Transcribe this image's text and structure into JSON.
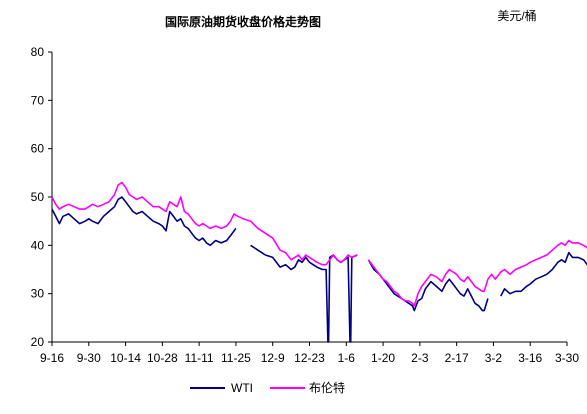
{
  "chart_data": {
    "type": "line",
    "title": "国际原油期货收盘价格走势图",
    "unit_label": "美元/桶",
    "ylim": [
      20,
      80
    ],
    "y_ticks": [
      20,
      30,
      40,
      50,
      60,
      70,
      80
    ],
    "x_ticks": [
      "9-16",
      "9-30",
      "10-14",
      "10-28",
      "11-11",
      "11-25",
      "12-9",
      "12-23",
      "1-6",
      "1-20",
      "2-3",
      "2-17",
      "3-2",
      "3-16",
      "3-30"
    ],
    "grid": false,
    "legend_position": "bottom",
    "series": [
      {
        "name": "WTI",
        "color": "#000080",
        "values": [
          [
            0,
            47.5
          ],
          [
            0.1,
            46.0
          ],
          [
            0.2,
            44.5
          ],
          [
            0.3,
            46.0
          ],
          [
            0.45,
            46.5
          ],
          [
            0.6,
            45.5
          ],
          [
            0.75,
            44.5
          ],
          [
            0.9,
            45.0
          ],
          [
            1.0,
            45.5
          ],
          [
            1.1,
            45.0
          ],
          [
            1.25,
            44.5
          ],
          [
            1.4,
            46.0
          ],
          [
            1.55,
            47.0
          ],
          [
            1.7,
            48.0
          ],
          [
            1.8,
            49.5
          ],
          [
            1.9,
            50.0
          ],
          [
            2.0,
            49.0
          ],
          [
            2.1,
            48.0
          ],
          [
            2.2,
            47.0
          ],
          [
            2.3,
            46.5
          ],
          [
            2.45,
            47.0
          ],
          [
            2.6,
            46.0
          ],
          [
            2.75,
            45.0
          ],
          [
            2.9,
            44.5
          ],
          [
            3.0,
            44.0
          ],
          [
            3.1,
            43.0
          ],
          [
            3.2,
            47.0
          ],
          [
            3.3,
            46.0
          ],
          [
            3.4,
            45.0
          ],
          [
            3.5,
            45.5
          ],
          [
            3.6,
            44.0
          ],
          [
            3.7,
            43.5
          ],
          [
            3.8,
            42.5
          ],
          [
            3.9,
            41.5
          ],
          [
            4.0,
            41.0
          ],
          [
            4.1,
            41.5
          ],
          [
            4.2,
            40.5
          ],
          [
            4.3,
            40.0
          ],
          [
            4.45,
            41.0
          ],
          [
            4.6,
            40.5
          ],
          [
            4.75,
            41.0
          ],
          [
            4.85,
            42.0
          ],
          [
            4.95,
            43.0
          ],
          [
            5.0,
            43.5
          ],
          null,
          [
            5.4,
            40.0
          ],
          [
            5.6,
            39.0
          ],
          [
            5.8,
            38.0
          ],
          [
            6.0,
            37.5
          ],
          [
            6.2,
            35.5
          ],
          [
            6.35,
            36.0
          ],
          [
            6.5,
            35.0
          ],
          [
            6.6,
            35.5
          ],
          [
            6.7,
            37.0
          ],
          [
            6.8,
            36.5
          ],
          [
            6.9,
            37.5
          ],
          [
            7.0,
            36.5
          ],
          [
            7.1,
            36.0
          ],
          [
            7.2,
            35.5
          ],
          [
            7.35,
            35.0
          ],
          [
            7.45,
            35.0
          ],
          [
            7.5,
            20.0
          ],
          [
            7.52,
            20.0
          ],
          [
            7.55,
            37.5
          ],
          [
            7.65,
            38.0
          ],
          [
            7.75,
            37.0
          ],
          [
            7.85,
            36.5
          ],
          [
            7.95,
            37.0
          ],
          [
            8.05,
            37.5
          ],
          [
            8.1,
            20.0
          ],
          [
            8.12,
            20.0
          ],
          [
            8.15,
            37.5
          ],
          [
            8.3,
            38.0
          ],
          null,
          [
            8.6,
            37.0
          ],
          [
            8.75,
            35.0
          ],
          [
            8.9,
            34.0
          ],
          [
            9.0,
            33.0
          ],
          [
            9.1,
            32.0
          ],
          [
            9.2,
            31.0
          ],
          [
            9.3,
            30.0
          ],
          [
            9.4,
            29.5
          ],
          [
            9.5,
            29.0
          ],
          [
            9.6,
            28.5
          ],
          [
            9.7,
            28.0
          ],
          [
            9.8,
            27.5
          ],
          [
            9.85,
            26.5
          ],
          [
            9.95,
            28.5
          ],
          [
            10.05,
            29.0
          ],
          [
            10.15,
            31.0
          ],
          [
            10.3,
            32.5
          ],
          [
            10.45,
            31.5
          ],
          [
            10.6,
            30.5
          ],
          [
            10.7,
            32.0
          ],
          [
            10.8,
            33.0
          ],
          [
            10.9,
            32.0
          ],
          [
            11.0,
            31.0
          ],
          [
            11.1,
            30.0
          ],
          [
            11.2,
            29.5
          ],
          [
            11.3,
            31.0
          ],
          [
            11.4,
            29.5
          ],
          [
            11.5,
            28.0
          ],
          [
            11.6,
            27.5
          ],
          [
            11.7,
            26.5
          ],
          [
            11.75,
            26.5
          ],
          [
            11.85,
            29.0
          ],
          null,
          [
            12.2,
            29.5
          ],
          [
            12.3,
            31.0
          ],
          [
            12.45,
            30.0
          ],
          [
            12.6,
            30.5
          ],
          [
            12.75,
            30.5
          ],
          [
            12.9,
            31.5
          ],
          [
            13.0,
            32.0
          ],
          [
            13.15,
            33.0
          ],
          [
            13.3,
            33.5
          ],
          [
            13.45,
            34.0
          ],
          [
            13.6,
            35.0
          ],
          [
            13.75,
            36.5
          ],
          [
            13.85,
            37.0
          ],
          [
            13.95,
            36.5
          ],
          [
            14.05,
            38.5
          ],
          [
            14.15,
            37.5
          ],
          [
            14.3,
            37.5
          ],
          [
            14.45,
            37.0
          ],
          [
            14.55,
            36.0
          ],
          [
            14.65,
            38.5
          ],
          [
            14.8,
            40.0
          ],
          [
            14.9,
            39.5
          ],
          [
            15.0,
            40.0
          ],
          [
            15.1,
            41.5
          ],
          [
            15.2,
            40.0
          ],
          [
            15.25,
            39.5
          ],
          null,
          [
            15.55,
            38.5
          ],
          [
            15.7,
            38.5
          ]
        ]
      },
      {
        "name": "布伦特",
        "color": "#ff00ff",
        "values": [
          [
            0,
            50.0
          ],
          [
            0.1,
            48.5
          ],
          [
            0.2,
            47.5
          ],
          [
            0.3,
            48.0
          ],
          [
            0.45,
            48.5
          ],
          [
            0.6,
            48.0
          ],
          [
            0.75,
            47.5
          ],
          [
            0.9,
            47.5
          ],
          [
            1.0,
            48.0
          ],
          [
            1.1,
            48.5
          ],
          [
            1.25,
            48.0
          ],
          [
            1.4,
            48.5
          ],
          [
            1.55,
            49.0
          ],
          [
            1.7,
            50.5
          ],
          [
            1.8,
            52.5
          ],
          [
            1.9,
            53.0
          ],
          [
            2.0,
            52.0
          ],
          [
            2.1,
            50.5
          ],
          [
            2.2,
            50.0
          ],
          [
            2.3,
            49.5
          ],
          [
            2.45,
            50.0
          ],
          [
            2.6,
            49.0
          ],
          [
            2.75,
            48.0
          ],
          [
            2.9,
            48.0
          ],
          [
            3.0,
            47.5
          ],
          [
            3.1,
            47.0
          ],
          [
            3.2,
            49.0
          ],
          [
            3.3,
            48.5
          ],
          [
            3.4,
            48.0
          ],
          [
            3.5,
            50.0
          ],
          [
            3.6,
            47.0
          ],
          [
            3.7,
            46.5
          ],
          [
            3.8,
            45.5
          ],
          [
            3.9,
            44.5
          ],
          [
            4.0,
            44.0
          ],
          [
            4.1,
            44.5
          ],
          [
            4.2,
            44.0
          ],
          [
            4.3,
            43.5
          ],
          [
            4.45,
            44.0
          ],
          [
            4.6,
            43.5
          ],
          [
            4.75,
            44.0
          ],
          [
            4.85,
            45.0
          ],
          [
            4.95,
            46.5
          ],
          [
            5.05,
            46.0
          ],
          [
            5.2,
            45.5
          ],
          [
            5.4,
            45.0
          ],
          [
            5.6,
            43.5
          ],
          [
            5.8,
            42.5
          ],
          [
            6.0,
            41.5
          ],
          [
            6.2,
            39.0
          ],
          [
            6.35,
            38.5
          ],
          [
            6.5,
            37.0
          ],
          [
            6.6,
            37.5
          ],
          [
            6.7,
            38.0
          ],
          [
            6.8,
            37.0
          ],
          [
            6.9,
            38.0
          ],
          [
            7.0,
            37.5
          ],
          [
            7.1,
            37.0
          ],
          [
            7.2,
            36.5
          ],
          [
            7.35,
            36.0
          ],
          [
            7.45,
            36.0
          ],
          [
            7.55,
            37.0
          ],
          [
            7.65,
            38.0
          ],
          [
            7.75,
            37.0
          ],
          [
            7.85,
            36.5
          ],
          [
            7.95,
            37.0
          ],
          [
            8.05,
            38.0
          ],
          [
            8.15,
            37.5
          ],
          [
            8.3,
            38.0
          ],
          null,
          [
            8.6,
            37.0
          ],
          [
            8.75,
            35.5
          ],
          [
            8.9,
            34.0
          ],
          [
            9.0,
            33.0
          ],
          [
            9.1,
            32.5
          ],
          [
            9.2,
            31.5
          ],
          [
            9.3,
            30.5
          ],
          [
            9.4,
            30.0
          ],
          [
            9.5,
            29.0
          ],
          [
            9.6,
            28.5
          ],
          [
            9.7,
            28.5
          ],
          [
            9.8,
            28.0
          ],
          [
            9.85,
            27.5
          ],
          [
            9.95,
            30.0
          ],
          [
            10.05,
            31.5
          ],
          [
            10.15,
            32.5
          ],
          [
            10.3,
            34.0
          ],
          [
            10.45,
            33.5
          ],
          [
            10.6,
            32.5
          ],
          [
            10.7,
            34.0
          ],
          [
            10.8,
            35.0
          ],
          [
            10.9,
            34.5
          ],
          [
            11.0,
            34.0
          ],
          [
            11.1,
            33.0
          ],
          [
            11.2,
            32.5
          ],
          [
            11.3,
            33.5
          ],
          [
            11.4,
            32.5
          ],
          [
            11.5,
            31.5
          ],
          [
            11.6,
            31.0
          ],
          [
            11.7,
            30.5
          ],
          [
            11.75,
            30.5
          ],
          [
            11.85,
            33.0
          ],
          [
            11.95,
            34.0
          ],
          [
            12.05,
            33.0
          ],
          [
            12.2,
            34.5
          ],
          [
            12.3,
            35.0
          ],
          [
            12.45,
            34.0
          ],
          [
            12.6,
            35.0
          ],
          [
            12.75,
            35.5
          ],
          [
            12.9,
            36.0
          ],
          [
            13.0,
            36.5
          ],
          [
            13.15,
            37.0
          ],
          [
            13.3,
            37.5
          ],
          [
            13.45,
            38.0
          ],
          [
            13.6,
            39.0
          ],
          [
            13.75,
            40.0
          ],
          [
            13.85,
            40.5
          ],
          [
            13.95,
            40.0
          ],
          [
            14.05,
            41.0
          ],
          [
            14.15,
            40.5
          ],
          [
            14.3,
            40.5
          ],
          [
            14.45,
            40.0
          ],
          [
            14.55,
            39.5
          ],
          [
            14.65,
            40.5
          ],
          [
            14.8,
            41.5
          ],
          [
            14.9,
            41.0
          ],
          [
            15.0,
            41.5
          ],
          [
            15.1,
            42.0
          ],
          [
            15.2,
            41.0
          ],
          [
            15.25,
            40.5
          ],
          null,
          [
            15.55,
            39.5
          ],
          [
            15.7,
            39.5
          ]
        ]
      }
    ]
  }
}
